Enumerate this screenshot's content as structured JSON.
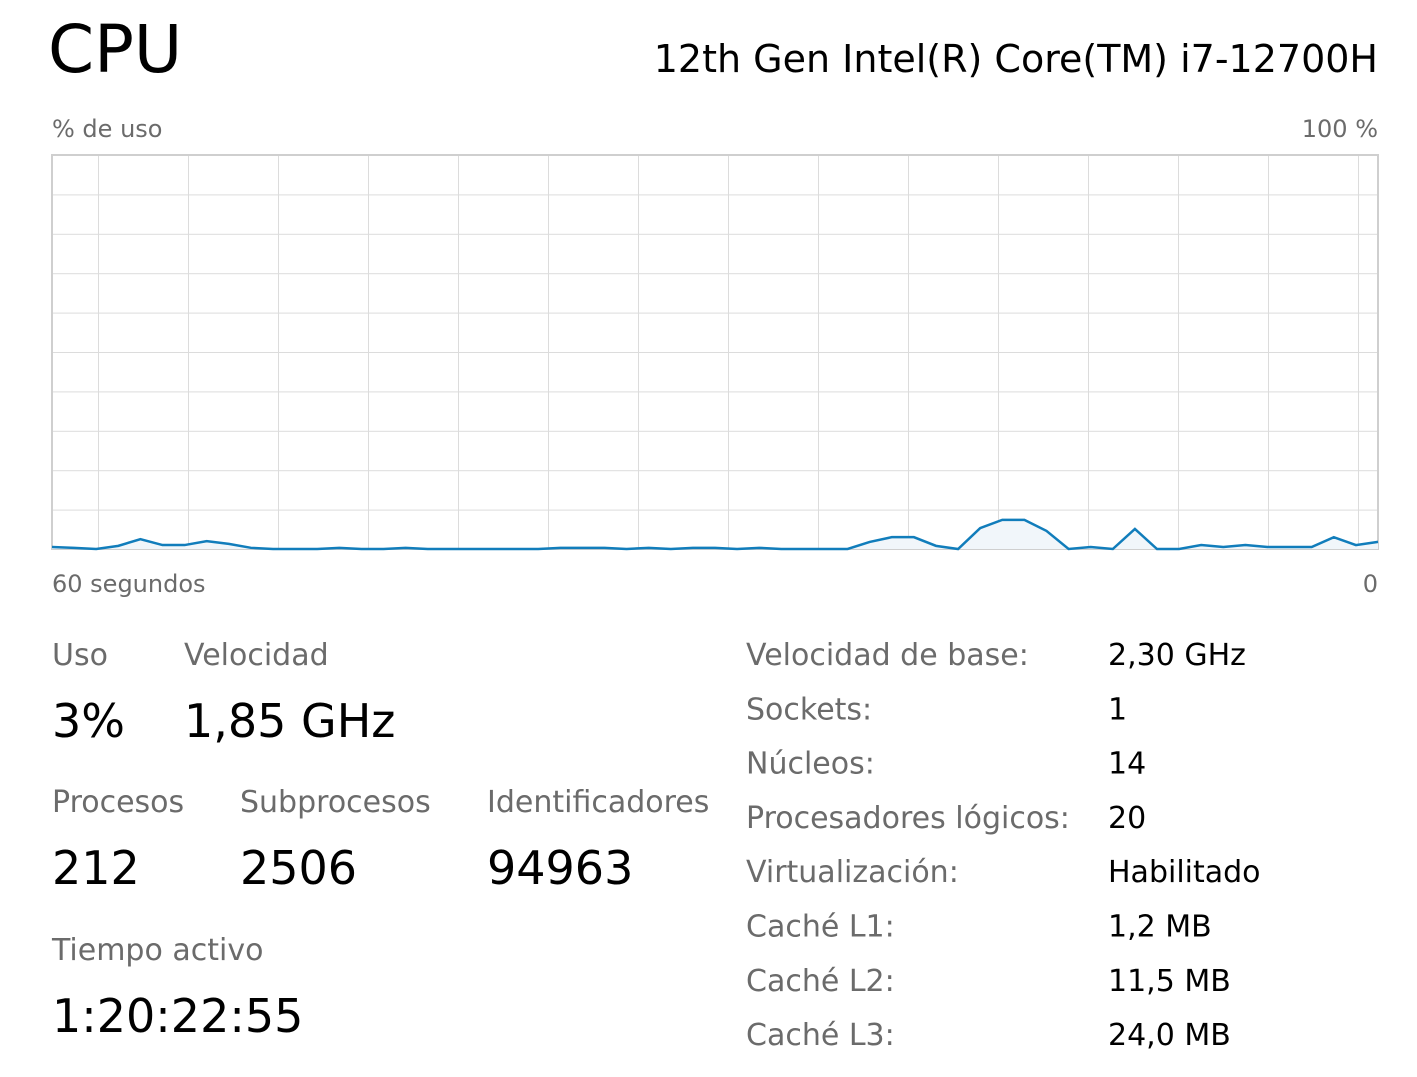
{
  "header": {
    "title": "CPU",
    "processor": "12th Gen Intel(R) Core(TM) i7-12700H"
  },
  "chart_data": {
    "type": "area",
    "y_label": "% de uso",
    "x": [
      60,
      59,
      58,
      57,
      56,
      55,
      54,
      53,
      52,
      51,
      50,
      49,
      48,
      47,
      46,
      45,
      44,
      43,
      42,
      41,
      40,
      39,
      38,
      37,
      36,
      35,
      34,
      33,
      32,
      31,
      30,
      29,
      28,
      27,
      26,
      25,
      24,
      23,
      22,
      21,
      20,
      19,
      18,
      17,
      16,
      15,
      14,
      13,
      12,
      11,
      10,
      9,
      8,
      7,
      6,
      5,
      4,
      3,
      2,
      1,
      0
    ],
    "values": [
      0.5,
      0.3,
      0,
      0.8,
      2.5,
      1.0,
      1.0,
      2.0,
      1.3,
      0.3,
      0,
      0,
      0,
      0.3,
      0,
      0,
      0.3,
      0,
      0,
      0,
      0,
      0,
      0,
      0.3,
      0.3,
      0.3,
      0,
      0.3,
      0,
      0.3,
      0.3,
      0,
      0.3,
      0,
      0,
      0,
      0,
      1.8,
      3.0,
      3.0,
      0.8,
      0,
      5.3,
      7.4,
      7.4,
      4.6,
      0,
      0.5,
      0,
      5.1,
      0,
      0,
      1.0,
      0.5,
      1.0,
      0.5,
      0.5,
      0.5,
      3.0,
      1.0,
      1.8
    ],
    "xlim": [
      60,
      0
    ],
    "ylim": [
      0,
      100
    ],
    "xticks": [
      {
        "value": 60,
        "label": "60 segundos"
      },
      0
    ],
    "yticks": [
      {
        "value": 100,
        "label": "100 %"
      }
    ],
    "color": "#117dbb",
    "fill_color": "#f1f6fa"
  },
  "stats": [
    {
      "label": "Uso",
      "value": "3%"
    },
    {
      "label": "Velocidad",
      "value": "1,85 GHz"
    },
    {
      "label": "Procesos",
      "value": "212"
    },
    {
      "label": "Subprocesos",
      "value": "2506"
    },
    {
      "label": "Identificadores",
      "value": "94963"
    },
    {
      "label": "Tiempo activo",
      "value": "1:20:22:55"
    }
  ],
  "details": [
    {
      "label": "Velocidad de base:",
      "value": "2,30 GHz"
    },
    {
      "label": "Sockets:",
      "value": "1"
    },
    {
      "label": "Núcleos:",
      "value": "14"
    },
    {
      "label": "Procesadores lógicos:",
      "value": "20"
    },
    {
      "label": "Virtualización:",
      "value": "Habilitado"
    },
    {
      "label": "Caché L1:",
      "value": "1,2 MB"
    },
    {
      "label": "Caché L2:",
      "value": "11,5 MB"
    },
    {
      "label": "Caché L3:",
      "value": "24,0 MB"
    }
  ]
}
